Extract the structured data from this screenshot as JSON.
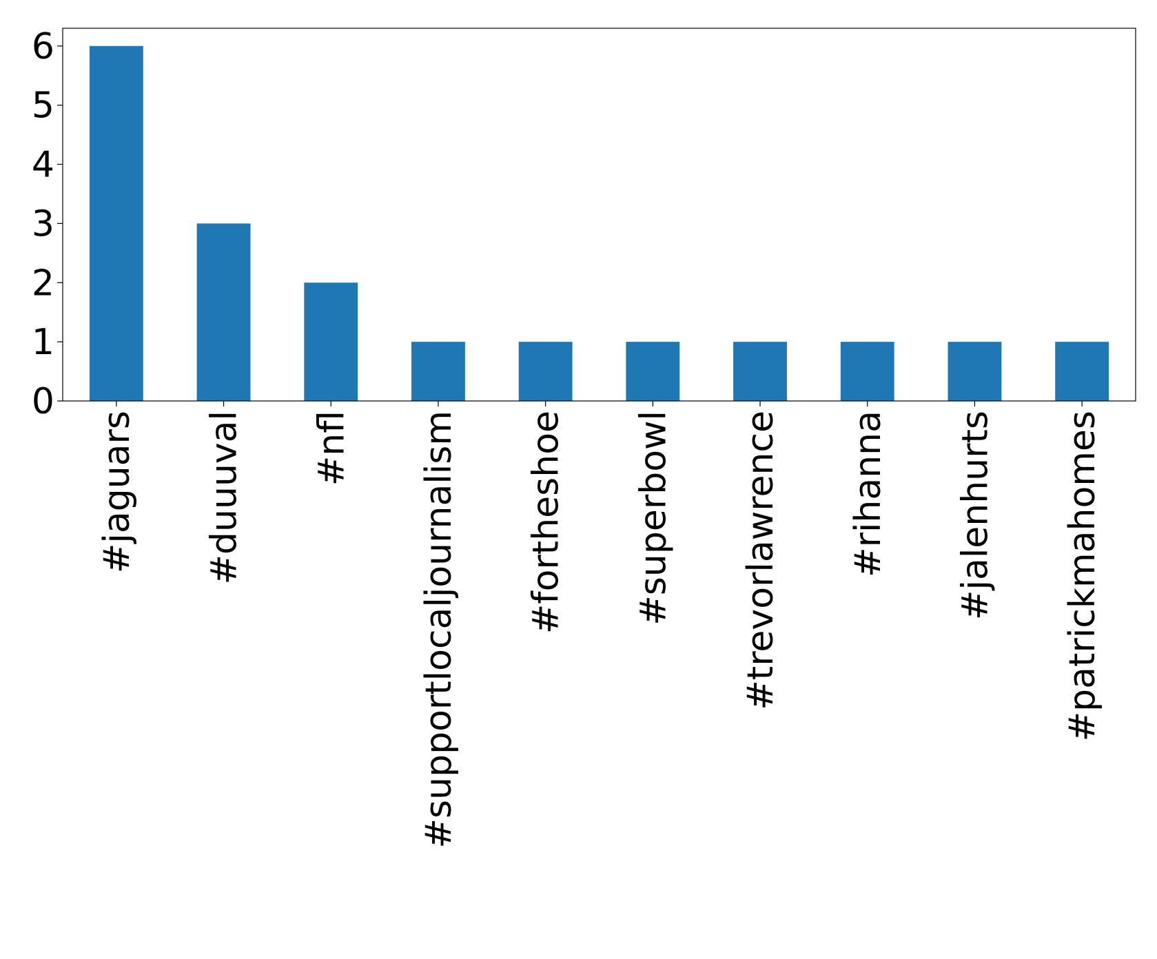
{
  "chart_data": {
    "type": "bar",
    "categories": [
      "#jaguars",
      "#duuuval",
      "#nfl",
      "#supportlocaljournalism",
      "#fortheshoe",
      "#superbowl",
      "#trevorlawrence",
      "#rihanna",
      "#jalenhurts",
      "#patrickmahomes"
    ],
    "values": [
      6,
      3,
      2,
      1,
      1,
      1,
      1,
      1,
      1,
      1
    ],
    "color": "#1f77b4",
    "ylim": [
      0,
      6.3
    ],
    "yticks": [
      0,
      1,
      2,
      3,
      4,
      5,
      6
    ],
    "grid": false
  }
}
